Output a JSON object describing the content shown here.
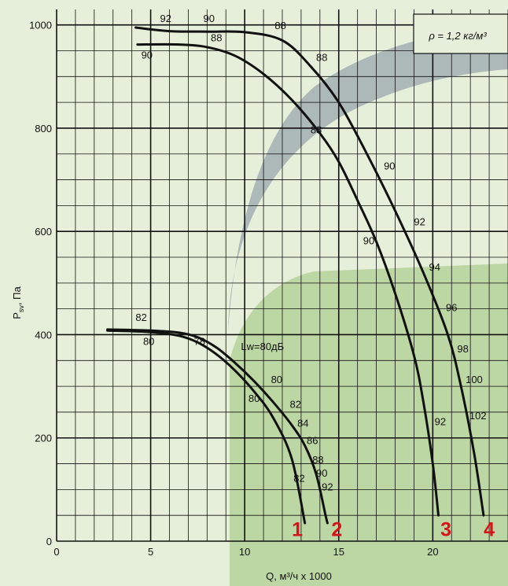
{
  "chart_data": {
    "type": "line",
    "title": "",
    "xlabel": "Q, м³/ч x 1000",
    "ylabel_main": "P",
    "ylabel_sub": "sv",
    "ylabel_rest": ", Па",
    "density_note": "ρ = 1,2 кг/м³",
    "xlim": [
      0,
      24
    ],
    "ylim": [
      0,
      1030
    ],
    "x_ticks": [
      0,
      5,
      10,
      15,
      20
    ],
    "y_ticks": [
      0,
      200,
      400,
      600,
      800,
      1000
    ],
    "grid": true,
    "legend": "none",
    "lw_label": "Lw=80дБ",
    "colors": {
      "background": "#e6efd9",
      "grid": "#111111",
      "curve": "#111111",
      "curve_number": "#d7141a",
      "recommended_zone": "#b5d29a",
      "efficiency_band": "#9aa6ac"
    },
    "series": [
      {
        "name": "1",
        "points": [
          [
            2.7,
            408
          ],
          [
            5,
            405
          ],
          [
            6.5,
            398
          ],
          [
            7.5,
            385
          ],
          [
            8.5,
            362
          ],
          [
            9.5,
            330
          ],
          [
            10.5,
            290
          ],
          [
            11.5,
            240
          ],
          [
            12.5,
            160
          ],
          [
            13.2,
            35
          ]
        ],
        "label_values": [
          {
            "x": 4.5,
            "y": 427,
            "text": "82"
          },
          {
            "x": 4.9,
            "y": 380,
            "text": "80"
          },
          {
            "x": 10.5,
            "y": 270,
            "text": "80"
          },
          {
            "x": 12.9,
            "y": 115,
            "text": "82"
          }
        ],
        "number_at": [
          12.8,
          10
        ]
      },
      {
        "name": "2",
        "points": [
          [
            2.7,
            410
          ],
          [
            5,
            408
          ],
          [
            6.5,
            404
          ],
          [
            7.5,
            395
          ],
          [
            8.5,
            375
          ],
          [
            9.5,
            345
          ],
          [
            10.5,
            310
          ],
          [
            11.5,
            270
          ],
          [
            12.5,
            225
          ],
          [
            13.2,
            185
          ],
          [
            13.8,
            130
          ],
          [
            14.3,
            50
          ],
          [
            14.4,
            35
          ]
        ],
        "label_values": [
          {
            "x": 7.6,
            "y": 380,
            "text": "78"
          },
          {
            "x": 11.7,
            "y": 306,
            "text": "80"
          },
          {
            "x": 12.7,
            "y": 258,
            "text": "82"
          },
          {
            "x": 13.1,
            "y": 222,
            "text": "84"
          },
          {
            "x": 13.6,
            "y": 188,
            "text": "86"
          },
          {
            "x": 13.9,
            "y": 151,
            "text": "88"
          },
          {
            "x": 14.1,
            "y": 125,
            "text": "90"
          },
          {
            "x": 14.4,
            "y": 98,
            "text": "92"
          }
        ],
        "number_at": [
          14.9,
          10
        ]
      },
      {
        "name": "3",
        "points": [
          [
            4.3,
            962
          ],
          [
            6.5,
            962
          ],
          [
            8,
            957
          ],
          [
            9.5,
            940
          ],
          [
            11,
            905
          ],
          [
            12.5,
            855
          ],
          [
            14,
            790
          ],
          [
            15,
            735
          ],
          [
            16,
            660
          ],
          [
            17,
            580
          ],
          [
            18,
            480
          ],
          [
            19,
            360
          ],
          [
            19.5,
            270
          ],
          [
            20,
            150
          ],
          [
            20.3,
            50
          ]
        ],
        "label_values": [
          {
            "x": 4.8,
            "y": 935,
            "text": "90"
          },
          {
            "x": 8.5,
            "y": 968,
            "text": "88"
          },
          {
            "x": 13.8,
            "y": 790,
            "text": "88"
          },
          {
            "x": 16.6,
            "y": 575,
            "text": "90"
          },
          {
            "x": 20.4,
            "y": 225,
            "text": "92"
          }
        ],
        "number_at": [
          20.7,
          10
        ]
      },
      {
        "name": "4",
        "points": [
          [
            4.2,
            995
          ],
          [
            6,
            988
          ],
          [
            8,
            987
          ],
          [
            10,
            986
          ],
          [
            12,
            970
          ],
          [
            13.5,
            920
          ],
          [
            15,
            850
          ],
          [
            16.5,
            750
          ],
          [
            18,
            640
          ],
          [
            19.5,
            520
          ],
          [
            20.8,
            400
          ],
          [
            21.5,
            300
          ],
          [
            22.2,
            170
          ],
          [
            22.7,
            50
          ]
        ],
        "label_values": [
          {
            "x": 5.8,
            "y": 1006,
            "text": "92"
          },
          {
            "x": 8.1,
            "y": 1006,
            "text": "90"
          },
          {
            "x": 11.9,
            "y": 992,
            "text": "88"
          },
          {
            "x": 14.1,
            "y": 930,
            "text": "88"
          },
          {
            "x": 17.7,
            "y": 720,
            "text": "90"
          },
          {
            "x": 19.3,
            "y": 612,
            "text": "92"
          },
          {
            "x": 20.1,
            "y": 524,
            "text": "94"
          },
          {
            "x": 21.0,
            "y": 446,
            "text": "96"
          },
          {
            "x": 21.6,
            "y": 366,
            "text": "98"
          },
          {
            "x": 22.2,
            "y": 306,
            "text": "100"
          },
          {
            "x": 22.4,
            "y": 236,
            "text": "102"
          }
        ],
        "number_at": [
          23.0,
          10
        ]
      }
    ]
  }
}
